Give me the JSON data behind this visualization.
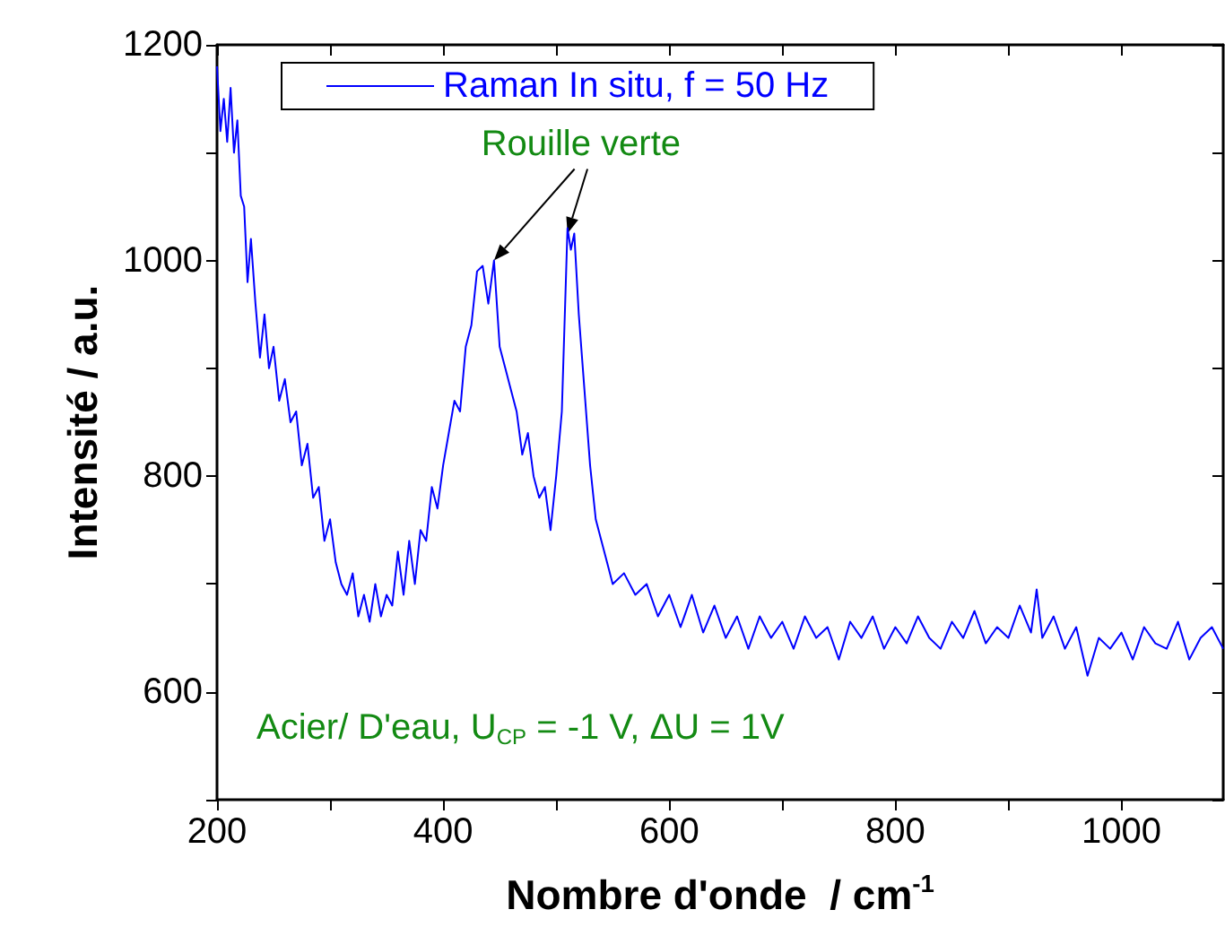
{
  "chart_data": {
    "type": "line",
    "xlabel": "Nombre d'onde  / cm$^{-1}$",
    "ylabel": "Intensité / a.u.",
    "xlim": [
      200,
      1090
    ],
    "xticks": [
      200,
      {
        "value": 300,
        "label": null
      },
      400,
      {
        "value": 500,
        "label": null
      },
      600,
      {
        "value": 700,
        "label": null
      },
      800,
      {
        "value": 900,
        "label": null
      },
      1000
    ],
    "ylim": [
      500,
      1200
    ],
    "yticks": [
      {
        "value": 500,
        "label": null
      },
      600,
      {
        "value": 700,
        "label": null
      },
      800,
      {
        "value": 900,
        "label": null
      },
      1000,
      {
        "value": 1100,
        "label": null
      },
      1200
    ],
    "grid": false,
    "legend": "top left",
    "marker": "none",
    "line_style": "solid",
    "annotations": [
      {
        "text": "Rouille verte",
        "x": 510,
        "y": 1025
      },
      "Acier/ D'eau, U$_{CP}$ = -1 V, ΔU = 1V"
    ],
    "series": [
      {
        "name": "Raman In situ, f = 50 Hz",
        "color": "#0000ff",
        "x": [
          200,
          203,
          206,
          209,
          212,
          215,
          218,
          221,
          224,
          227,
          230,
          234,
          238,
          242,
          246,
          250,
          255,
          260,
          265,
          270,
          275,
          280,
          285,
          290,
          295,
          300,
          305,
          310,
          315,
          320,
          325,
          330,
          335,
          340,
          345,
          350,
          355,
          360,
          365,
          370,
          375,
          380,
          385,
          390,
          395,
          400,
          405,
          410,
          415,
          420,
          425,
          430,
          435,
          440,
          445,
          450,
          455,
          460,
          465,
          470,
          475,
          480,
          485,
          490,
          495,
          500,
          505,
          510,
          513,
          516,
          520,
          525,
          530,
          535,
          540,
          545,
          550,
          560,
          570,
          580,
          590,
          600,
          610,
          620,
          630,
          640,
          650,
          660,
          670,
          680,
          690,
          700,
          710,
          720,
          730,
          740,
          750,
          760,
          770,
          780,
          790,
          800,
          810,
          820,
          830,
          840,
          850,
          860,
          870,
          880,
          890,
          900,
          910,
          920,
          925,
          930,
          940,
          950,
          960,
          970,
          980,
          990,
          1000,
          1010,
          1020,
          1030,
          1040,
          1050,
          1060,
          1070,
          1080,
          1090
        ],
        "values": [
          1180,
          1120,
          1150,
          1110,
          1160,
          1100,
          1130,
          1060,
          1050,
          980,
          1020,
          960,
          910,
          950,
          900,
          920,
          870,
          890,
          850,
          860,
          810,
          830,
          780,
          790,
          740,
          760,
          720,
          700,
          690,
          710,
          670,
          690,
          665,
          700,
          670,
          690,
          680,
          730,
          690,
          740,
          700,
          750,
          740,
          790,
          770,
          810,
          840,
          870,
          860,
          920,
          940,
          990,
          995,
          960,
          1000,
          920,
          900,
          880,
          860,
          820,
          840,
          800,
          780,
          790,
          750,
          800,
          860,
          1030,
          1010,
          1025,
          950,
          880,
          810,
          760,
          740,
          720,
          700,
          710,
          690,
          700,
          670,
          690,
          660,
          690,
          655,
          680,
          650,
          670,
          640,
          670,
          650,
          665,
          640,
          670,
          650,
          660,
          630,
          665,
          650,
          670,
          640,
          660,
          645,
          670,
          650,
          640,
          665,
          650,
          675,
          645,
          660,
          650,
          680,
          655,
          695,
          650,
          670,
          640,
          660,
          615,
          650,
          640,
          655,
          630,
          660,
          645,
          640,
          665,
          630,
          650,
          660,
          640
        ]
      }
    ]
  }
}
